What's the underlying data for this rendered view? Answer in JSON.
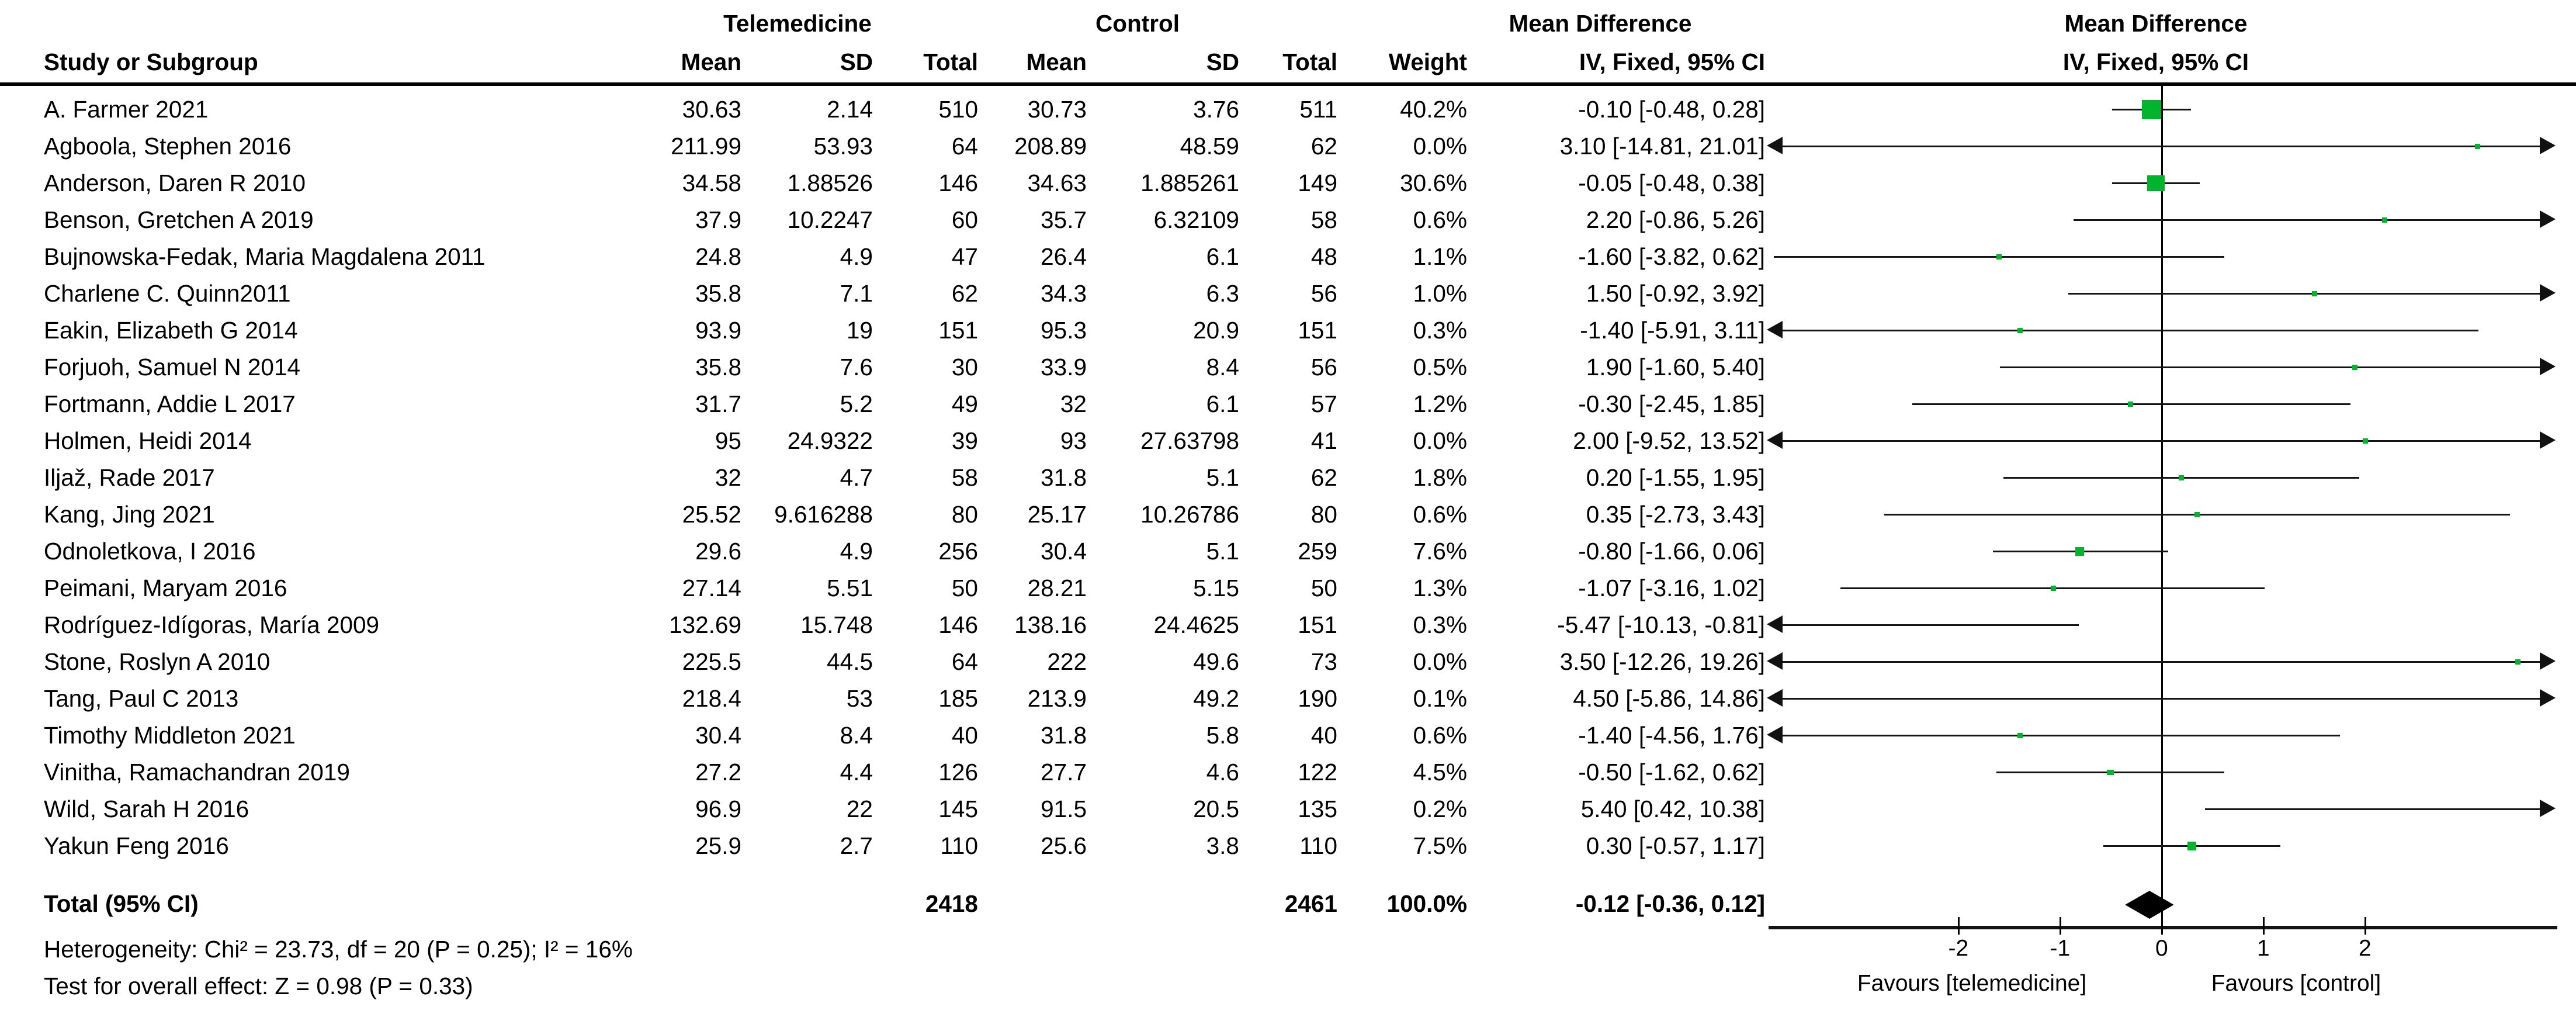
{
  "header": {
    "group_telemedicine": "Telemedicine",
    "group_control": "Control",
    "group_md": "Mean Difference",
    "col_study": "Study or Subgroup",
    "col_mean_t": "Mean",
    "col_sd_t": "SD",
    "col_total_t": "Total",
    "col_mean_c": "Mean",
    "col_sd_c": "SD",
    "col_total_c": "Total",
    "col_weight": "Weight",
    "col_ci": "IV, Fixed, 95% CI",
    "plot_title_line1": "Mean Difference",
    "plot_title_line2": "IV, Fixed, 95% CI"
  },
  "footer": {
    "heterogeneity": "Heterogeneity: Chi² = 23.73, df = 20 (P = 0.25); I² = 16%",
    "overall_effect": "Test for overall effect: Z = 0.98 (P = 0.33)"
  },
  "colors": {
    "marker_green": "#00b42d",
    "diamond_black": "#000000",
    "line_black": "#141414"
  },
  "chart_data": {
    "type": "forest",
    "effect_measure": "Mean Difference, IV, Fixed, 95% CI",
    "axis": {
      "ticks": [
        "-2",
        "-1",
        "0",
        "1",
        "2"
      ],
      "tick_values": [
        -2,
        -1,
        0,
        1,
        2
      ],
      "plot_min": -3.85,
      "plot_max": 3.85,
      "favours_left": "Favours [telemedicine]",
      "favours_right": "Favours [control]"
    },
    "studies": [
      {
        "name": "A. Farmer 2021",
        "t_mean": "30.63",
        "t_sd": "2.14",
        "t_total": "510",
        "c_mean": "30.73",
        "c_sd": "3.76",
        "c_total": "511",
        "weight": "40.2%",
        "md_text": "-0.10 [-0.48, 0.28]",
        "est": -0.1,
        "lo": -0.48,
        "hi": 0.28,
        "w": 40.2
      },
      {
        "name": "Agboola, Stephen 2016",
        "t_mean": "211.99",
        "t_sd": "53.93",
        "t_total": "64",
        "c_mean": "208.89",
        "c_sd": "48.59",
        "c_total": "62",
        "weight": "0.0%",
        "md_text": "3.10 [-14.81, 21.01]",
        "est": 3.1,
        "lo": -14.81,
        "hi": 21.01,
        "w": 0.0
      },
      {
        "name": "Anderson, Daren R 2010",
        "t_mean": "34.58",
        "t_sd": "1.88526",
        "t_total": "146",
        "c_mean": "34.63",
        "c_sd": "1.885261",
        "c_total": "149",
        "weight": "30.6%",
        "md_text": "-0.05 [-0.48, 0.38]",
        "est": -0.05,
        "lo": -0.48,
        "hi": 0.38,
        "w": 30.6
      },
      {
        "name": "Benson, Gretchen A 2019",
        "t_mean": "37.9",
        "t_sd": "10.2247",
        "t_total": "60",
        "c_mean": "35.7",
        "c_sd": "6.32109",
        "c_total": "58",
        "weight": "0.6%",
        "md_text": "2.20 [-0.86, 5.26]",
        "est": 2.2,
        "lo": -0.86,
        "hi": 5.26,
        "w": 0.6
      },
      {
        "name": "Bujnowska-Fedak, Maria Magdalena 2011",
        "t_mean": "24.8",
        "t_sd": "4.9",
        "t_total": "47",
        "c_mean": "26.4",
        "c_sd": "6.1",
        "c_total": "48",
        "weight": "1.1%",
        "md_text": "-1.60 [-3.82, 0.62]",
        "est": -1.6,
        "lo": -3.82,
        "hi": 0.62,
        "w": 1.1
      },
      {
        "name": "Charlene C. Quinn2011",
        "t_mean": "35.8",
        "t_sd": "7.1",
        "t_total": "62",
        "c_mean": "34.3",
        "c_sd": "6.3",
        "c_total": "56",
        "weight": "1.0%",
        "md_text": "1.50 [-0.92, 3.92]",
        "est": 1.5,
        "lo": -0.92,
        "hi": 3.92,
        "w": 1.0
      },
      {
        "name": "Eakin, Elizabeth G 2014",
        "t_mean": "93.9",
        "t_sd": "19",
        "t_total": "151",
        "c_mean": "95.3",
        "c_sd": "20.9",
        "c_total": "151",
        "weight": "0.3%",
        "md_text": "-1.40 [-5.91, 3.11]",
        "est": -1.4,
        "lo": -5.91,
        "hi": 3.11,
        "w": 0.3
      },
      {
        "name": "Forjuoh, Samuel N 2014",
        "t_mean": "35.8",
        "t_sd": "7.6",
        "t_total": "30",
        "c_mean": "33.9",
        "c_sd": "8.4",
        "c_total": "56",
        "weight": "0.5%",
        "md_text": "1.90 [-1.60, 5.40]",
        "est": 1.9,
        "lo": -1.6,
        "hi": 5.4,
        "w": 0.5
      },
      {
        "name": "Fortmann, Addie L 2017",
        "t_mean": "31.7",
        "t_sd": "5.2",
        "t_total": "49",
        "c_mean": "32",
        "c_sd": "6.1",
        "c_total": "57",
        "weight": "1.2%",
        "md_text": "-0.30 [-2.45, 1.85]",
        "est": -0.3,
        "lo": -2.45,
        "hi": 1.85,
        "w": 1.2
      },
      {
        "name": "Holmen, Heidi 2014",
        "t_mean": "95",
        "t_sd": "24.9322",
        "t_total": "39",
        "c_mean": "93",
        "c_sd": "27.63798",
        "c_total": "41",
        "weight": "0.0%",
        "md_text": "2.00 [-9.52, 13.52]",
        "est": 2.0,
        "lo": -9.52,
        "hi": 13.52,
        "w": 0.0
      },
      {
        "name": "Iljaž, Rade 2017",
        "t_mean": "32",
        "t_sd": "4.7",
        "t_total": "58",
        "c_mean": "31.8",
        "c_sd": "5.1",
        "c_total": "62",
        "weight": "1.8%",
        "md_text": "0.20 [-1.55, 1.95]",
        "est": 0.2,
        "lo": -1.55,
        "hi": 1.95,
        "w": 1.8
      },
      {
        "name": "Kang, Jing 2021",
        "t_mean": "25.52",
        "t_sd": "9.616288",
        "t_total": "80",
        "c_mean": "25.17",
        "c_sd": "10.26786",
        "c_total": "80",
        "weight": "0.6%",
        "md_text": "0.35 [-2.73, 3.43]",
        "est": 0.35,
        "lo": -2.73,
        "hi": 3.43,
        "w": 0.6
      },
      {
        "name": "Odnoletkova, I 2016",
        "t_mean": "29.6",
        "t_sd": "4.9",
        "t_total": "256",
        "c_mean": "30.4",
        "c_sd": "5.1",
        "c_total": "259",
        "weight": "7.6%",
        "md_text": "-0.80 [-1.66, 0.06]",
        "est": -0.8,
        "lo": -1.66,
        "hi": 0.06,
        "w": 7.6
      },
      {
        "name": "Peimani, Maryam 2016",
        "t_mean": "27.14",
        "t_sd": "5.51",
        "t_total": "50",
        "c_mean": "28.21",
        "c_sd": "5.15",
        "c_total": "50",
        "weight": "1.3%",
        "md_text": "-1.07 [-3.16, 1.02]",
        "est": -1.07,
        "lo": -3.16,
        "hi": 1.02,
        "w": 1.3
      },
      {
        "name": "Rodríguez-Idígoras, María 2009",
        "t_mean": "132.69",
        "t_sd": "15.748",
        "t_total": "146",
        "c_mean": "138.16",
        "c_sd": "24.4625",
        "c_total": "151",
        "weight": "0.3%",
        "md_text": "-5.47 [-10.13, -0.81]",
        "est": -5.47,
        "lo": -10.13,
        "hi": -0.81,
        "w": 0.3
      },
      {
        "name": "Stone, Roslyn A 2010",
        "t_mean": "225.5",
        "t_sd": "44.5",
        "t_total": "64",
        "c_mean": "222",
        "c_sd": "49.6",
        "c_total": "73",
        "weight": "0.0%",
        "md_text": "3.50 [-12.26, 19.26]",
        "est": 3.5,
        "lo": -12.26,
        "hi": 19.26,
        "w": 0.0
      },
      {
        "name": "Tang, Paul C 2013",
        "t_mean": "218.4",
        "t_sd": "53",
        "t_total": "185",
        "c_mean": "213.9",
        "c_sd": "49.2",
        "c_total": "190",
        "weight": "0.1%",
        "md_text": "4.50 [-5.86, 14.86]",
        "est": 4.5,
        "lo": -5.86,
        "hi": 14.86,
        "w": 0.1
      },
      {
        "name": "Timothy Middleton 2021",
        "t_mean": "30.4",
        "t_sd": "8.4",
        "t_total": "40",
        "c_mean": "31.8",
        "c_sd": "5.8",
        "c_total": "40",
        "weight": "0.6%",
        "md_text": "-1.40 [-4.56, 1.76]",
        "est": -1.4,
        "lo": -4.56,
        "hi": 1.76,
        "w": 0.6
      },
      {
        "name": "Vinitha, Ramachandran 2019",
        "t_mean": "27.2",
        "t_sd": "4.4",
        "t_total": "126",
        "c_mean": "27.7",
        "c_sd": "4.6",
        "c_total": "122",
        "weight": "4.5%",
        "md_text": "-0.50 [-1.62, 0.62]",
        "est": -0.5,
        "lo": -1.62,
        "hi": 0.62,
        "w": 4.5
      },
      {
        "name": "Wild, Sarah H 2016",
        "t_mean": "96.9",
        "t_sd": "22",
        "t_total": "145",
        "c_mean": "91.5",
        "c_sd": "20.5",
        "c_total": "135",
        "weight": "0.2%",
        "md_text": "5.40 [0.42, 10.38]",
        "est": 5.4,
        "lo": 0.42,
        "hi": 10.38,
        "w": 0.2
      },
      {
        "name": "Yakun Feng 2016",
        "t_mean": "25.9",
        "t_sd": "2.7",
        "t_total": "110",
        "c_mean": "25.6",
        "c_sd": "3.8",
        "c_total": "110",
        "weight": "7.5%",
        "md_text": "0.30 [-0.57, 1.17]",
        "est": 0.3,
        "lo": -0.57,
        "hi": 1.17,
        "w": 7.5
      }
    ],
    "total": {
      "label": "Total (95% CI)",
      "telemedicine_total": "2418",
      "control_total": "2461",
      "weight": "100.0%",
      "md_text": "-0.12 [-0.36, 0.12]",
      "est": -0.12,
      "lo": -0.36,
      "hi": 0.12
    }
  }
}
